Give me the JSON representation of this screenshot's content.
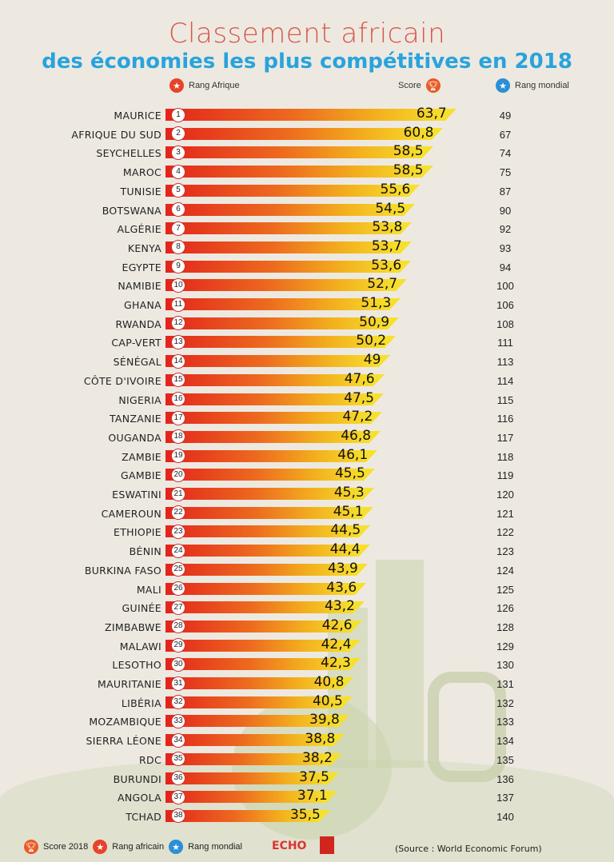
{
  "title_line1": "Classement africain",
  "title_line2": "des économies les plus compétitives en 2018",
  "headers": {
    "rang_afrique": "Rang Afrique",
    "score": "Score",
    "rang_mondial": "Rang mondial"
  },
  "legend": {
    "score": "Score 2018",
    "rang_africain": "Rang africain",
    "rang_mondial": "Rang mondial"
  },
  "logo_text": "ECHO",
  "source": "(Source : World Economic Forum)",
  "colors": {
    "title_red": "#d9574a",
    "title_blue": "#29a3dc",
    "bar_start": "#e3261c",
    "bar_end": "#f7e02c",
    "background": "#ede9e1"
  },
  "chart_data": {
    "type": "bar",
    "orientation": "horizontal",
    "title": "Classement africain des économies les plus compétitives en 2018",
    "categories": [
      "Maurice",
      "Afrique du Sud",
      "Seychelles",
      "Maroc",
      "Tunisie",
      "Botswana",
      "Algérie",
      "Kenya",
      "Egypte",
      "Namibie",
      "Ghana",
      "Rwanda",
      "Cap-Vert",
      "Sénégal",
      "Côte d'Ivoire",
      "Nigeria",
      "Tanzanie",
      "Ouganda",
      "Zambie",
      "Gambie",
      "Eswatini",
      "Cameroun",
      "Ethiopie",
      "Bénin",
      "Burkina Faso",
      "Mali",
      "Guinée",
      "Zimbabwe",
      "Malawi",
      "Lesotho",
      "Mauritanie",
      "Libéria",
      "Mozambique",
      "Sierra Léone",
      "RDC",
      "Burundi",
      "Angola",
      "Tchad"
    ],
    "rang_afrique": [
      1,
      2,
      3,
      4,
      5,
      6,
      7,
      8,
      9,
      10,
      11,
      12,
      13,
      14,
      15,
      16,
      17,
      18,
      19,
      20,
      21,
      22,
      23,
      24,
      25,
      26,
      27,
      28,
      29,
      30,
      31,
      32,
      33,
      34,
      35,
      36,
      37,
      38
    ],
    "score_labels": [
      "63,7",
      "60,8",
      "58,5",
      "58,5",
      "55,6",
      "54,5",
      "53,8",
      "53,7",
      "53,6",
      "52,7",
      "51,3",
      "50,9",
      "50,2",
      "49",
      "47,6",
      "47,5",
      "47,2",
      "46,8",
      "46,1",
      "45,5",
      "45,3",
      "45,1",
      "44,5",
      "44,4",
      "43,9",
      "43,6",
      "43,2",
      "42,6",
      "42,4",
      "42,3",
      "40,8",
      "40,5",
      "39,8",
      "38,8",
      "38,2",
      "37,5",
      "37,1",
      "35,5"
    ],
    "values": [
      63.7,
      60.8,
      58.5,
      58.5,
      55.6,
      54.5,
      53.8,
      53.7,
      53.6,
      52.7,
      51.3,
      50.9,
      50.2,
      49,
      47.6,
      47.5,
      47.2,
      46.8,
      46.1,
      45.5,
      45.3,
      45.1,
      44.5,
      44.4,
      43.9,
      43.6,
      43.2,
      42.6,
      42.4,
      42.3,
      40.8,
      40.5,
      39.8,
      38.8,
      38.2,
      37.5,
      37.1,
      35.5
    ],
    "rang_mondial": [
      49,
      67,
      74,
      75,
      87,
      90,
      92,
      93,
      94,
      100,
      106,
      108,
      111,
      113,
      114,
      115,
      116,
      117,
      118,
      119,
      120,
      121,
      122,
      123,
      124,
      125,
      126,
      128,
      129,
      130,
      131,
      132,
      133,
      134,
      135,
      136,
      137,
      140
    ],
    "grid": false
  }
}
